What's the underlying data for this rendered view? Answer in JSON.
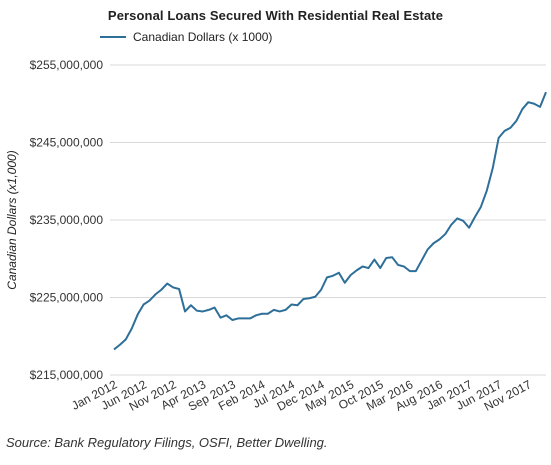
{
  "chart_data": {
    "type": "line",
    "title": "Personal Loans Secured With Residential Real Estate",
    "ylabel": "Canadian Dollars (x1,000)",
    "xlabel": "",
    "ylim": [
      215000000,
      255000000
    ],
    "y_ticks": [
      "$255,000,000",
      "$245,000,000",
      "$235,000,000",
      "$225,000,000",
      "$215,000,000"
    ],
    "y_tick_values": [
      255000000,
      245000000,
      235000000,
      225000000,
      215000000
    ],
    "x_ticks": [
      "Jan 2012",
      "Jun 2012",
      "Nov 2012",
      "Apr 2013",
      "Sep 2013",
      "Feb 2014",
      "Jul 2014",
      "Dec 2014",
      "May 2015",
      "Oct 2015",
      "Mar 2016",
      "Aug 2016",
      "Jan 2017",
      "Jun 2017",
      "Nov 2017"
    ],
    "x_tick_index": [
      0,
      5,
      10,
      15,
      20,
      25,
      30,
      35,
      40,
      45,
      50,
      55,
      60,
      65,
      70
    ],
    "x_count": 74,
    "grid": true,
    "legend_position": "top-left",
    "color": "#2e6f99",
    "series": [
      {
        "name": "Canadian Dollars (x 1000)",
        "values": [
          218300000,
          218900000,
          219600000,
          221000000,
          222800000,
          224100000,
          224600000,
          225400000,
          226000000,
          226800000,
          226300000,
          226100000,
          223200000,
          224000000,
          223300000,
          223200000,
          223400000,
          223700000,
          222400000,
          222700000,
          222100000,
          222300000,
          222300000,
          222300000,
          222700000,
          222900000,
          222900000,
          223400000,
          223200000,
          223400000,
          224100000,
          224000000,
          224800000,
          224900000,
          225100000,
          226000000,
          227600000,
          227800000,
          228200000,
          226900000,
          227900000,
          228500000,
          229000000,
          228800000,
          229900000,
          228800000,
          230100000,
          230200000,
          229200000,
          229000000,
          228400000,
          228400000,
          229800000,
          231200000,
          232000000,
          232500000,
          233200000,
          234400000,
          235200000,
          234900000,
          234000000,
          235400000,
          236700000,
          238800000,
          241700000,
          245600000,
          246500000,
          246900000,
          247800000,
          249300000,
          250200000,
          250000000,
          249600000,
          251500000
        ]
      }
    ]
  },
  "source": "Source: Bank Regulatory Filings, OSFI, Better Dwelling."
}
